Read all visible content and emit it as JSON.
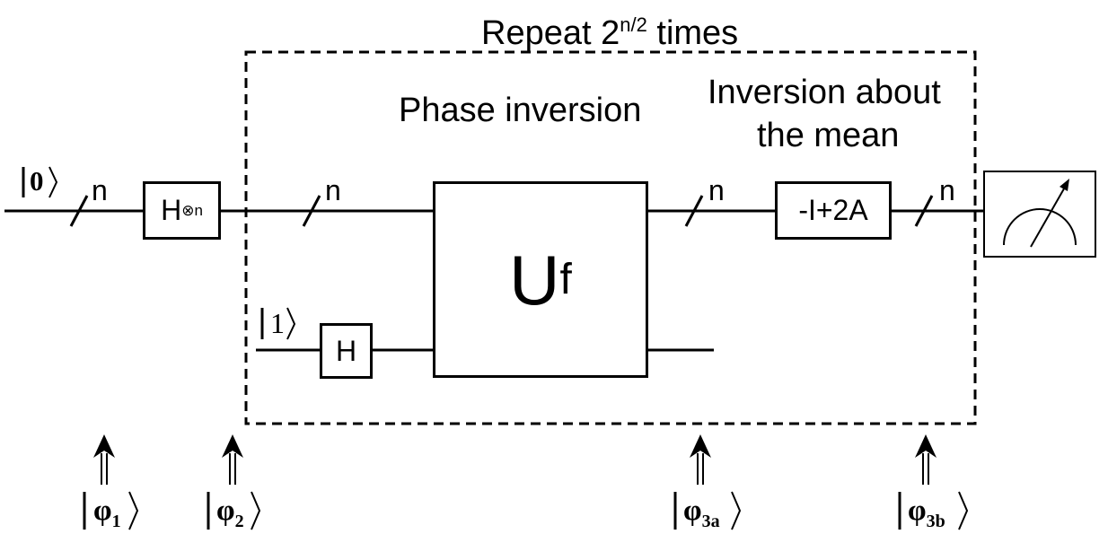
{
  "loop": {
    "title_prefix": "Repeat 2",
    "title_sup": "n/2",
    "title_suffix": " times"
  },
  "sections": {
    "phase_inversion": "Phase inversion",
    "inversion_line1": "Inversion about",
    "inversion_line2": "the mean"
  },
  "inputs": {
    "top_ket": "0",
    "bottom_ket": "1"
  },
  "wire_labels": {
    "n1": "n",
    "n2": "n",
    "n3": "n",
    "n4": "n"
  },
  "gates": {
    "hadamard_n_base": "H",
    "hadamard_n_sup": "⊗n",
    "hadamard": "H",
    "oracle_base": "U",
    "oracle_sub": "f",
    "diffusion": "-I+2A"
  },
  "states": {
    "phi1_sub": "1",
    "phi2_sub": "2",
    "phi3a_sub": "3a",
    "phi3b_sub": "3b",
    "phi_symbol": "φ"
  }
}
